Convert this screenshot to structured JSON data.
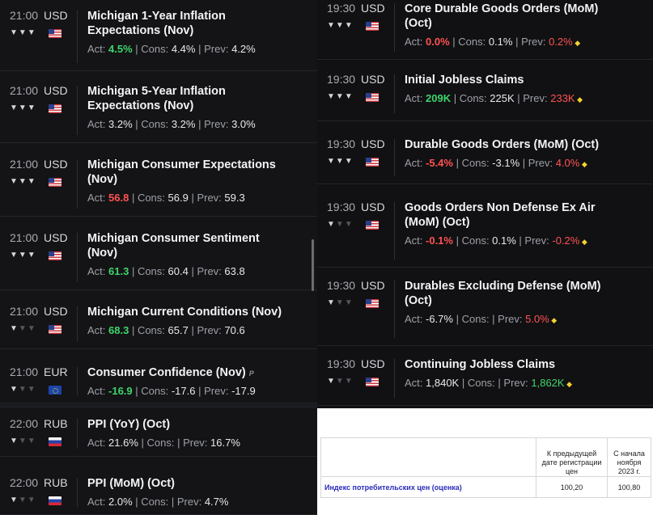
{
  "left_events": [
    {
      "time": "21:00",
      "currency": "USD",
      "flag": "us",
      "bulls": 3,
      "title": "Michigan 1-Year Inflation Expectations (Nov)",
      "act": "4.5%",
      "act_color": "green",
      "cons": "4.4%",
      "prev": "4.2%",
      "prev_color": "neutral",
      "prev_revised": false
    },
    {
      "time": "21:00",
      "currency": "USD",
      "flag": "us",
      "bulls": 3,
      "title": "Michigan 5-Year Inflation Expectations (Nov)",
      "act": "3.2%",
      "act_color": "neutral",
      "cons": "3.2%",
      "prev": "3.0%",
      "prev_color": "neutral",
      "prev_revised": false
    },
    {
      "time": "21:00",
      "currency": "USD",
      "flag": "us",
      "bulls": 3,
      "title": "Michigan Consumer Expectations (Nov)",
      "act": "56.8",
      "act_color": "red",
      "cons": "56.9",
      "prev": "59.3",
      "prev_color": "neutral",
      "prev_revised": false
    },
    {
      "time": "21:00",
      "currency": "USD",
      "flag": "us",
      "bulls": 3,
      "title": "Michigan Consumer Sentiment (Nov)",
      "act": "61.3",
      "act_color": "green",
      "cons": "60.4",
      "prev": "63.8",
      "prev_color": "neutral",
      "prev_revised": false
    },
    {
      "time": "21:00",
      "currency": "USD",
      "flag": "us",
      "bulls": 1,
      "title": "Michigan Current Conditions (Nov)",
      "act": "68.3",
      "act_color": "green",
      "cons": "65.7",
      "prev": "70.6",
      "prev_color": "neutral",
      "prev_revised": false
    },
    {
      "time": "21:00",
      "currency": "EUR",
      "flag": "eu",
      "bulls": 1,
      "title": "Consumer Confidence (Nov)",
      "preliminary_mark": "P",
      "act": "-16.9",
      "act_color": "green",
      "cons": "-17.6",
      "prev": "-17.9",
      "prev_color": "neutral",
      "prev_revised": false
    },
    {
      "time": "22:00",
      "currency": "RUB",
      "flag": "ru",
      "bulls": 1,
      "title": "PPI (YoY) (Oct)",
      "act": "21.6%",
      "act_color": "neutral",
      "cons": "",
      "prev": "16.7%",
      "prev_color": "neutral",
      "prev_revised": false
    },
    {
      "time": "22:00",
      "currency": "RUB",
      "flag": "ru",
      "bulls": 1,
      "title": "PPI (MoM) (Oct)",
      "act": "2.0%",
      "act_color": "neutral",
      "cons": "",
      "prev": "4.7%",
      "prev_color": "neutral",
      "prev_revised": false
    }
  ],
  "right_events": [
    {
      "time": "19:30",
      "currency": "USD",
      "flag": "us",
      "bulls": 3,
      "title": "Core Durable Goods Orders (MoM) (Oct)",
      "act": "0.0%",
      "act_color": "red",
      "cons": "0.1%",
      "prev": "0.2%",
      "prev_color": "red",
      "prev_revised": true
    },
    {
      "time": "19:30",
      "currency": "USD",
      "flag": "us",
      "bulls": 3,
      "title": "Initial Jobless Claims",
      "act": "209K",
      "act_color": "green",
      "cons": "225K",
      "prev": "233K",
      "prev_color": "red",
      "prev_revised": true
    },
    {
      "time": "19:30",
      "currency": "USD",
      "flag": "us",
      "bulls": 3,
      "title": "Durable Goods Orders (MoM) (Oct)",
      "act": "-5.4%",
      "act_color": "red",
      "cons": "-3.1%",
      "prev": "4.0%",
      "prev_color": "red",
      "prev_revised": true
    },
    {
      "time": "19:30",
      "currency": "USD",
      "flag": "us",
      "bulls": 1,
      "title": "Goods Orders Non Defense Ex Air (MoM) (Oct)",
      "act": "-0.1%",
      "act_color": "red",
      "cons": "0.1%",
      "prev": "-0.2%",
      "prev_color": "red",
      "prev_revised": true
    },
    {
      "time": "19:30",
      "currency": "USD",
      "flag": "us",
      "bulls": 1,
      "title": "Durables Excluding Defense (MoM) (Oct)",
      "act": "-6.7%",
      "act_color": "neutral",
      "cons": "",
      "prev": "5.0%",
      "prev_color": "red",
      "prev_revised": true
    },
    {
      "time": "19:30",
      "currency": "USD",
      "flag": "us",
      "bulls": 1,
      "title": "Continuing Jobless Claims",
      "act": "1,840K",
      "act_color": "neutral",
      "cons": "",
      "prev": "1,862K",
      "prev_color": "green",
      "prev_revised": true
    }
  ],
  "labels": {
    "act": "Act:",
    "cons": "Cons:",
    "prev": "Prev:"
  },
  "table": {
    "col1_header": "К предыдущей дате регистрации цен",
    "col2_header": "С начала ноября 2023 г.",
    "row_label": "Индекс потребительских цен (оценка)",
    "col1_value": "100,20",
    "col2_value": "100,80"
  },
  "colors": {
    "green": "#3ed46b",
    "red": "#ff5252",
    "revision_dot": "#f3d331",
    "background": "#0e0e10"
  },
  "icons": {
    "impact": "bull-icon",
    "revision": "diamond-icon"
  }
}
